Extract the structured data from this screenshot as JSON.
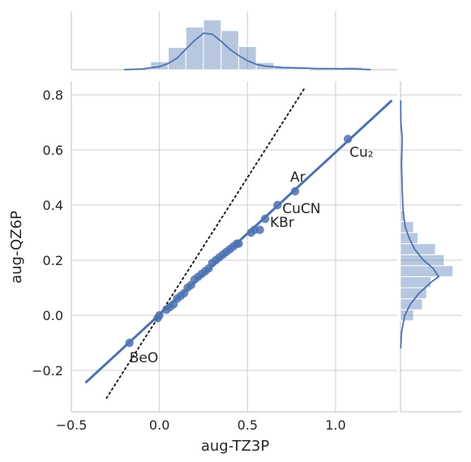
{
  "chart_data": {
    "type": "scatter",
    "xlabel": "aug-TZ3P",
    "ylabel": "aug-QZ6P",
    "xlim": [
      -0.5,
      1.35
    ],
    "ylim": [
      -0.35,
      0.85
    ],
    "x_ticks": [
      -0.5,
      0.0,
      0.5,
      1.0
    ],
    "x_tick_labels": [
      "−0.5",
      "0.0",
      "0.5",
      "1.0"
    ],
    "y_ticks": [
      -0.2,
      0.0,
      0.2,
      0.4,
      0.6,
      0.8
    ],
    "y_tick_labels": [
      "−0.2",
      "0.0",
      "0.2",
      "0.4",
      "0.6",
      "0.8"
    ],
    "grid": true,
    "color": "#4c72b0",
    "points": [
      {
        "x": -0.17,
        "y": -0.1,
        "label": "BeO"
      },
      {
        "x": -0.01,
        "y": -0.01
      },
      {
        "x": 0.0,
        "y": 0.0
      },
      {
        "x": 0.04,
        "y": 0.02
      },
      {
        "x": 0.06,
        "y": 0.03
      },
      {
        "x": 0.08,
        "y": 0.04
      },
      {
        "x": 0.1,
        "y": 0.06
      },
      {
        "x": 0.12,
        "y": 0.07
      },
      {
        "x": 0.14,
        "y": 0.08
      },
      {
        "x": 0.16,
        "y": 0.1
      },
      {
        "x": 0.18,
        "y": 0.11
      },
      {
        "x": 0.2,
        "y": 0.13
      },
      {
        "x": 0.22,
        "y": 0.14
      },
      {
        "x": 0.24,
        "y": 0.15
      },
      {
        "x": 0.26,
        "y": 0.16
      },
      {
        "x": 0.28,
        "y": 0.17
      },
      {
        "x": 0.3,
        "y": 0.19
      },
      {
        "x": 0.32,
        "y": 0.2
      },
      {
        "x": 0.34,
        "y": 0.21
      },
      {
        "x": 0.36,
        "y": 0.22
      },
      {
        "x": 0.38,
        "y": 0.23
      },
      {
        "x": 0.4,
        "y": 0.24
      },
      {
        "x": 0.42,
        "y": 0.25
      },
      {
        "x": 0.44,
        "y": 0.26
      },
      {
        "x": 0.45,
        "y": 0.26
      },
      {
        "x": 0.52,
        "y": 0.3
      },
      {
        "x": 0.54,
        "y": 0.31
      },
      {
        "x": 0.57,
        "y": 0.31
      },
      {
        "x": 0.6,
        "y": 0.35,
        "label": "KBr"
      },
      {
        "x": 0.67,
        "y": 0.4,
        "label": "CuCN"
      },
      {
        "x": 0.77,
        "y": 0.45,
        "label": "Ar"
      },
      {
        "x": 1.07,
        "y": 0.64,
        "label": "Cu₂"
      }
    ],
    "regression": {
      "x0": -0.42,
      "y0": -0.245,
      "x1": 1.32,
      "y1": 0.78
    },
    "identity_line": {
      "x0": -0.3,
      "y0": -0.3,
      "x1": 0.82,
      "y1": 0.82
    },
    "x_histogram": {
      "bin_edges": [
        -0.05,
        0.05,
        0.15,
        0.25,
        0.35,
        0.45,
        0.55,
        0.65,
        0.75,
        0.85,
        0.95,
        1.05,
        1.15
      ],
      "heights": [
        0.9,
        2.5,
        4.8,
        5.6,
        4.4,
        2.6,
        0.8,
        0.3,
        0.3,
        0.0,
        0.0,
        0.3
      ]
    },
    "x_kde": [
      [
        -0.2,
        0.02
      ],
      [
        -0.1,
        0.08
      ],
      [
        0.0,
        0.35
      ],
      [
        0.05,
        0.7
      ],
      [
        0.1,
        1.3
      ],
      [
        0.15,
        2.3
      ],
      [
        0.2,
        3.3
      ],
      [
        0.25,
        4.1
      ],
      [
        0.3,
        4.0
      ],
      [
        0.35,
        3.2
      ],
      [
        0.4,
        2.3
      ],
      [
        0.45,
        1.6
      ],
      [
        0.5,
        1.0
      ],
      [
        0.55,
        0.6
      ],
      [
        0.6,
        0.4
      ],
      [
        0.7,
        0.25
      ],
      [
        0.8,
        0.2
      ],
      [
        0.9,
        0.12
      ],
      [
        1.0,
        0.12
      ],
      [
        1.1,
        0.08
      ],
      [
        1.2,
        0.02
      ]
    ],
    "y_histogram": {
      "bin_edges": [
        -0.02,
        0.02,
        0.06,
        0.1,
        0.14,
        0.18,
        0.22,
        0.26,
        0.3,
        0.34,
        0.38,
        0.42,
        0.46,
        0.5,
        0.54,
        0.58,
        0.62,
        0.66
      ],
      "heights": [
        0.6,
        1.0,
        1.2,
        1.4,
        2.4,
        2.0,
        1.6,
        0.8,
        0.6,
        0.2,
        0.0,
        0.0,
        0.0,
        0.0,
        0.0,
        0.0,
        0.0
      ]
    },
    "y_kde": [
      [
        -0.12,
        0.01
      ],
      [
        -0.06,
        0.05
      ],
      [
        0.0,
        0.2
      ],
      [
        0.04,
        0.45
      ],
      [
        0.08,
        0.85
      ],
      [
        0.12,
        1.4
      ],
      [
        0.14,
        1.75
      ],
      [
        0.17,
        1.5
      ],
      [
        0.2,
        1.05
      ],
      [
        0.24,
        0.65
      ],
      [
        0.28,
        0.4
      ],
      [
        0.32,
        0.22
      ],
      [
        0.38,
        0.12
      ],
      [
        0.45,
        0.08
      ],
      [
        0.55,
        0.05
      ],
      [
        0.64,
        0.08
      ],
      [
        0.7,
        0.02
      ],
      [
        0.78,
        0.01
      ]
    ]
  }
}
